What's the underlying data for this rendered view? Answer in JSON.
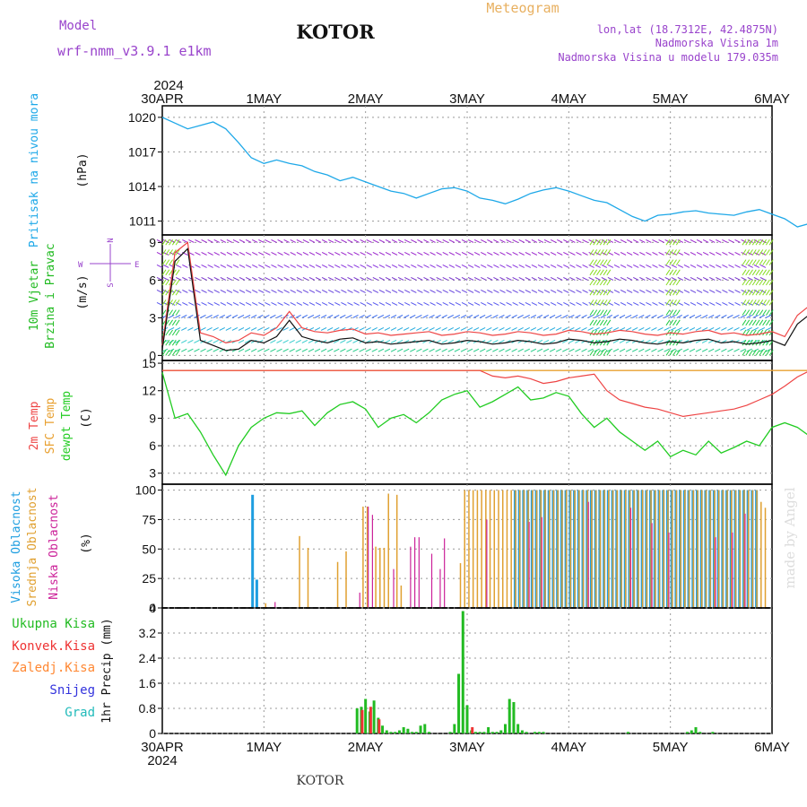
{
  "header": {
    "model_label": "Model",
    "model_value": "wrf-nmm_v3.9.1  e1km",
    "station": "KOTOR",
    "product": "Meteogram",
    "lonlat": "lon,lat (18.7312E, 42.4875N)",
    "altitude": "Nadmorska Visina 1m",
    "model_altitude": "Nadmorska Visina u modelu 179.035m",
    "year_top": "2024",
    "year_bottom": "2024",
    "footer_station": "KOTOR",
    "watermark": "made by Angel"
  },
  "colors": {
    "pressure": "#1ea8e8",
    "wind_label": "#22bb22",
    "wind_label2": "#cc33cc",
    "temp2m": "#ee4444",
    "sfc": "#e8a030",
    "dewpt": "#22cc22",
    "cloud_high": "#1e9ee0",
    "cloud_mid": "#e0a030",
    "cloud_low": "#cc2299",
    "precip_total": "#22bb22",
    "precip_conv": "#ee3333",
    "precip_ice": "#ff8833",
    "precip_snow": "#3333dd",
    "precip_hail": "#22bbbb",
    "axis_title": "#9944cc",
    "meteogram": "#e8b060"
  },
  "time_axis": {
    "ticks": [
      "30APR",
      "1MAY",
      "2MAY",
      "3MAY",
      "4MAY",
      "5MAY",
      "6MAY"
    ]
  },
  "panels": {
    "pressure": {
      "title": "Pritisak na nivou mora",
      "unit": "(hPa)",
      "ticks": [
        "1020",
        "1017",
        "1014",
        "1011"
      ]
    },
    "wind": {
      "title1": "10m Vjetar",
      "title2": "Brzina i Pravac",
      "unit": "(m/s)",
      "ticks": [
        "9",
        "6",
        "3",
        "0"
      ],
      "compass": {
        "n": "N",
        "s": "S",
        "e": "E",
        "w": "W"
      }
    },
    "temp": {
      "title1": "2m Temp",
      "title2": "SFC Temp",
      "title3": "dewpt Temp",
      "unit": "(C)",
      "ticks": [
        "15",
        "12",
        "9",
        "6",
        "3"
      ]
    },
    "cloud": {
      "title1": "Visoka Oblacnost",
      "title2": "Srednja Oblacnost",
      "title3": "Niska Oblacnost",
      "unit": "(%)",
      "ticks": [
        "100",
        "75",
        "50",
        "25",
        "0"
      ]
    },
    "precip": {
      "legend": [
        "Ukupna Kisa",
        "Konvek.Kisa",
        "Zaledj.Kisa",
        "Snijeg",
        "Grad"
      ],
      "unit": "1hr Precip (mm)",
      "ticks": [
        "4",
        "3.2",
        "2.4",
        "1.6",
        "0.8",
        "0"
      ]
    }
  },
  "chart_data": [
    {
      "type": "line",
      "title": "Pritisak na nivou mora",
      "ylabel": "(hPa)",
      "ylim": [
        1009.8,
        1021
      ],
      "x_start": "2024-04-30 00:00",
      "x_step_hours": 3,
      "series": [
        {
          "name": "Pritisak na nivou mora",
          "values": [
            1020,
            1019.5,
            1019.0,
            1019.3,
            1019.6,
            1019.0,
            1017.8,
            1016.5,
            1016.0,
            1016.3,
            1016.0,
            1015.8,
            1015.3,
            1015.0,
            1014.5,
            1014.8,
            1014.4,
            1014.0,
            1013.6,
            1013.4,
            1013.0,
            1013.4,
            1013.8,
            1013.9,
            1013.6,
            1013.0,
            1012.8,
            1012.5,
            1012.9,
            1013.4,
            1013.7,
            1013.9,
            1013.6,
            1013.2,
            1012.8,
            1012.6,
            1012.0,
            1011.4,
            1011.0,
            1011.5,
            1011.6,
            1011.8,
            1011.9,
            1011.7,
            1011.6,
            1011.5,
            1011.8,
            1012.0,
            1011.6,
            1011.2,
            1010.5,
            1010.8,
            1011.6,
            1012.0,
            1012.2,
            1012.8,
            1013.0,
            1012.9,
            1013.3,
            1013.5,
            1013.9,
            1014.6,
            1015.0,
            1014.6,
            1014.0,
            1013.7,
            1013.3,
            1013.1,
            1013.6,
            1013.9,
            1013.7,
            1013.8,
            1013.8
          ]
        }
      ]
    },
    {
      "type": "line",
      "title": "10m Vjetar Brzina i Pravac",
      "ylabel": "(m/s)",
      "ylim": [
        -0.4,
        9.6
      ],
      "x_start": "2024-04-30 00:00",
      "x_step_hours": 3,
      "series": [
        {
          "name": "Brzina",
          "values": [
            0.5,
            7.5,
            8.5,
            1.2,
            0.8,
            0.4,
            0.5,
            1.2,
            1.0,
            1.5,
            2.8,
            1.5,
            1.2,
            1.0,
            1.3,
            1.4,
            1.0,
            1.1,
            0.9,
            1.0,
            1.1,
            1.2,
            0.9,
            1.0,
            1.2,
            1.1,
            0.9,
            1.0,
            1.2,
            1.1,
            0.9,
            1.0,
            1.3,
            1.2,
            1.0,
            1.1,
            1.3,
            1.2,
            1.0,
            0.9,
            1.1,
            1.0,
            1.2,
            1.3,
            1.0,
            1.1,
            0.9,
            1.0,
            1.2,
            0.8,
            2.5,
            3.3,
            1.0,
            0.8,
            0.9,
            1.0,
            0.8,
            0.9,
            0.7,
            3.0,
            4.0,
            1.0,
            2.5,
            1.2,
            1.0,
            0.9,
            0.8,
            0.7,
            0.5,
            0.6,
            3.5,
            4.3,
            3.8
          ]
        },
        {
          "name": "Udari",
          "values": [
            0.8,
            8.2,
            9.0,
            1.8,
            1.5,
            1.0,
            1.2,
            1.8,
            1.6,
            2.2,
            3.5,
            2.2,
            1.9,
            1.8,
            2.0,
            2.1,
            1.7,
            1.8,
            1.6,
            1.7,
            1.8,
            1.9,
            1.6,
            1.7,
            1.9,
            1.8,
            1.6,
            1.7,
            1.9,
            1.8,
            1.6,
            1.7,
            2.0,
            1.9,
            1.7,
            1.8,
            2.0,
            1.9,
            1.7,
            1.6,
            1.8,
            1.7,
            1.9,
            2.0,
            1.7,
            1.8,
            1.6,
            1.7,
            1.9,
            1.5,
            3.2,
            4.0,
            1.7,
            1.5,
            1.6,
            1.7,
            1.5,
            1.6,
            1.4,
            3.7,
            4.7,
            1.7,
            3.2,
            1.9,
            1.7,
            1.6,
            1.5,
            1.4,
            1.2,
            1.3,
            4.2,
            5.0,
            4.5
          ]
        }
      ]
    },
    {
      "type": "line",
      "title": "2m Temp / SFC Temp / dewpt Temp",
      "ylabel": "(C)",
      "ylim": [
        1.8,
        15.3
      ],
      "x_start": "2024-04-30 00:00",
      "x_step_hours": 3,
      "series": [
        {
          "name": "2m Temp",
          "values": [
            14.2,
            14.2,
            14.2,
            14.2,
            14.2,
            14.2,
            14.2,
            14.2,
            14.2,
            14.2,
            14.2,
            14.2,
            14.2,
            14.2,
            14.2,
            14.2,
            14.2,
            14.2,
            14.2,
            14.2,
            14.2,
            14.2,
            14.2,
            14.2,
            14.2,
            14.2,
            13.6,
            13.4,
            13.6,
            13.3,
            12.8,
            13.0,
            13.4,
            13.6,
            13.8,
            12.0,
            11.0,
            10.6,
            10.2,
            10.0,
            9.6,
            9.2,
            9.4,
            9.6,
            9.8,
            10.0,
            10.4,
            11.0,
            11.6,
            12.5,
            13.5,
            14.2,
            14.2,
            14.2,
            14.2,
            14.2,
            14.2,
            14.2,
            14.2,
            14.2,
            14.2,
            14.2,
            14.2,
            14.2,
            13.7,
            14.0,
            13.8,
            14.1,
            14.0,
            14.2,
            14.2,
            14.2,
            14.2
          ]
        },
        {
          "name": "SFC Temp",
          "values": [
            14.2,
            14.2,
            14.2,
            14.2,
            14.2,
            14.2,
            14.2,
            14.2,
            14.2,
            14.2,
            14.2,
            14.2,
            14.2,
            14.2,
            14.2,
            14.2,
            14.2,
            14.2,
            14.2,
            14.2,
            14.2,
            14.2,
            14.2,
            14.2,
            14.2,
            14.2,
            14.2,
            14.2,
            14.2,
            14.2,
            14.2,
            14.2,
            14.2,
            14.2,
            14.2,
            14.2,
            14.2,
            14.2,
            14.2,
            14.2,
            14.2,
            14.2,
            14.2,
            14.2,
            14.2,
            14.2,
            14.2,
            14.2,
            14.2,
            14.2,
            14.2,
            14.2,
            14.2,
            14.2,
            14.2,
            14.2,
            14.2,
            14.2,
            14.2,
            14.2,
            14.2,
            14.2,
            14.2,
            14.2,
            14.2,
            14.2,
            14.2,
            14.2,
            14.2,
            14.2,
            14.2,
            14.2,
            14.2
          ]
        },
        {
          "name": "dewpt Temp",
          "values": [
            14.0,
            9.0,
            9.5,
            7.5,
            5.0,
            2.8,
            6.0,
            8.0,
            9.0,
            9.6,
            9.5,
            9.8,
            8.2,
            9.6,
            10.5,
            10.8,
            10.0,
            8.0,
            9.0,
            9.4,
            8.5,
            9.6,
            11.0,
            11.6,
            12.0,
            10.2,
            10.8,
            11.6,
            12.4,
            11.0,
            11.2,
            11.8,
            11.4,
            9.5,
            8.0,
            9.0,
            7.5,
            6.5,
            5.5,
            6.5,
            4.8,
            5.5,
            5.0,
            6.5,
            5.2,
            5.8,
            6.5,
            6.0,
            8.0,
            8.5,
            8.0,
            7.0,
            8.2,
            8.0,
            7.5,
            7.0,
            10.5,
            11.2,
            10.5,
            8.0,
            5.5,
            4.0,
            6.5,
            7.5,
            7.0,
            6.5,
            6.8,
            7.2,
            8.0,
            10.5,
            11.5,
            11.0,
            10.0
          ]
        }
      ]
    },
    {
      "type": "bar",
      "title": "Visoka / Srednja / Niska Oblacnost",
      "ylabel": "(%)",
      "ylim": [
        0,
        100
      ],
      "x_start": "2024-04-30 00:00",
      "x_step_hours": 1,
      "series": [
        {
          "name": "Visoka Oblacnost",
          "hours": [
            21,
            22,
            83,
            84,
            85,
            86,
            87,
            88,
            89,
            90,
            91,
            92,
            93,
            94,
            95,
            96,
            97,
            98,
            99,
            100,
            101,
            102,
            103,
            104,
            105,
            106,
            107,
            108,
            109,
            110,
            111,
            112,
            113,
            114,
            115,
            116,
            117,
            118,
            119,
            120,
            121,
            122,
            123,
            124,
            125,
            126,
            127,
            128,
            129,
            130,
            131,
            132,
            133,
            134,
            135,
            136,
            137,
            138,
            139,
            140
          ],
          "values": [
            96,
            24,
            100,
            100,
            100,
            100,
            100,
            100,
            100,
            100,
            100,
            100,
            100,
            100,
            100,
            100,
            100,
            100,
            100,
            100,
            100,
            100,
            100,
            100,
            100,
            100,
            100,
            100,
            100,
            100,
            100,
            100,
            100,
            100,
            100,
            100,
            100,
            100,
            100,
            100,
            100,
            100,
            100,
            100,
            100,
            100,
            100,
            100,
            100,
            100,
            100,
            100,
            100,
            100,
            100,
            100,
            100,
            100,
            100,
            100
          ]
        },
        {
          "name": "Srednja Oblacnost",
          "hours": [
            24,
            32,
            34,
            41,
            43,
            47,
            48,
            50,
            51,
            52,
            53,
            55,
            56,
            70,
            71,
            72,
            73,
            74,
            75,
            76,
            77,
            78,
            79,
            80,
            81,
            82,
            83,
            84,
            85,
            86,
            87,
            88,
            89,
            90,
            91,
            92,
            93,
            94,
            95,
            96,
            97,
            98,
            99,
            100,
            101,
            102,
            103,
            104,
            105,
            106,
            107,
            108,
            109,
            110,
            111,
            112,
            113,
            114,
            115,
            116,
            117,
            118,
            119,
            120,
            121,
            122,
            123,
            124,
            125,
            126,
            127,
            128,
            129,
            130,
            131,
            132,
            133,
            134,
            135,
            136,
            137,
            138,
            139,
            140,
            141,
            142
          ],
          "values": [
            4,
            61,
            51,
            39,
            48,
            86,
            86,
            52,
            51,
            51,
            97,
            96,
            19,
            38,
            100,
            100,
            100,
            100,
            100,
            100,
            100,
            100,
            100,
            100,
            100,
            100,
            100,
            100,
            100,
            100,
            100,
            100,
            100,
            100,
            100,
            100,
            100,
            100,
            100,
            100,
            100,
            100,
            100,
            100,
            100,
            100,
            100,
            100,
            100,
            100,
            100,
            100,
            100,
            100,
            100,
            100,
            100,
            100,
            100,
            100,
            100,
            100,
            100,
            100,
            100,
            100,
            100,
            100,
            100,
            100,
            100,
            100,
            100,
            100,
            100,
            100,
            100,
            100,
            100,
            100,
            100,
            100,
            100,
            100,
            90,
            85
          ]
        },
        {
          "name": "Niska Oblacnost",
          "hours": [
            26,
            46,
            48,
            49,
            54,
            58,
            59,
            60,
            63,
            65,
            66,
            76,
            86,
            89,
            100,
            110,
            115,
            119,
            130,
            134,
            137
          ],
          "values": [
            5,
            13,
            86,
            79,
            33,
            52,
            60,
            60,
            46,
            33,
            59,
            75,
            73,
            77,
            90,
            85,
            72,
            64,
            60,
            64,
            80
          ]
        }
      ]
    },
    {
      "type": "bar",
      "title": "1hr Precip (mm)",
      "ylabel": "1hr Precip (mm)",
      "ylim": [
        0,
        4
      ],
      "x_start": "2024-04-30 00:00",
      "x_step_hours": 1,
      "series": [
        {
          "name": "Ukupna Kisa",
          "hours": [
            46,
            47,
            48,
            49,
            50,
            51,
            52,
            53,
            54,
            55,
            56,
            57,
            58,
            59,
            60,
            61,
            62,
            63,
            68,
            69,
            70,
            71,
            72,
            73,
            74,
            75,
            76,
            77,
            78,
            79,
            80,
            81,
            82,
            83,
            84,
            85,
            86,
            88,
            89,
            90,
            110,
            124,
            125,
            126,
            127,
            130
          ],
          "values": [
            0.8,
            0.85,
            1.1,
            0.7,
            1.05,
            0.5,
            0.25,
            0.1,
            0.05,
            0.05,
            0.1,
            0.2,
            0.15,
            0.05,
            0.05,
            0.25,
            0.3,
            0.05,
            0.05,
            0.3,
            1.9,
            3.9,
            0.9,
            0.1,
            0.05,
            0.05,
            0.05,
            0.2,
            0.05,
            0.05,
            0.1,
            0.3,
            1.1,
            1.0,
            0.3,
            0.1,
            0.05,
            0.05,
            0.05,
            0.05,
            0.05,
            0.05,
            0.1,
            0.2,
            0.05,
            0.05
          ]
        },
        {
          "name": "Konvek.Kisa",
          "hours": [
            47,
            49,
            51,
            73
          ],
          "values": [
            0.75,
            0.85,
            0.45,
            0.2
          ]
        }
      ]
    }
  ]
}
